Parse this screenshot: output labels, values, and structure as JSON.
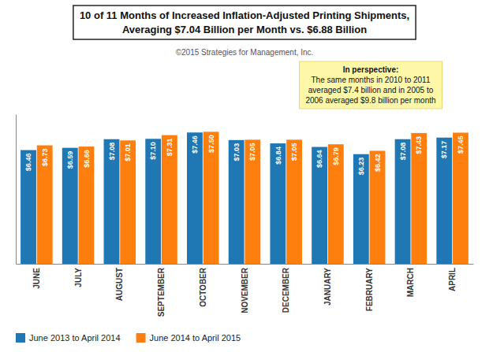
{
  "chart_data": {
    "type": "bar",
    "title": "10 of 11 Months of Increased Inflation-Adjusted Printing Shipments,\nAveraging $7.04 Billion per Month vs. $6.88 Billion",
    "subtitle": "©2015 Strategies for Management, Inc.",
    "categories": [
      "JUNE",
      "JULY",
      "AUGUST",
      "SEPTEMBER",
      "OCTOBER",
      "NOVEMBER",
      "DECEMBER",
      "JANUARY",
      "FEBRUARY",
      "MARCH",
      "APRIL"
    ],
    "series": [
      {
        "name": "June 2013 to April 2014",
        "values": [
          6.46,
          6.59,
          7.08,
          7.1,
          7.46,
          7.03,
          6.84,
          6.64,
          6.23,
          7.08,
          7.17
        ],
        "value_labels": [
          "$6.46",
          "$6.59",
          "$7.08",
          "$7.10",
          "$7.46",
          "$7.03",
          "$6.84",
          "$6.64",
          "$6.23",
          "$7.08",
          "$7.17"
        ]
      },
      {
        "name": "June 2014 to April 2015",
        "values": [
          6.73,
          6.66,
          7.01,
          7.31,
          7.5,
          7.05,
          7.05,
          6.79,
          6.42,
          7.43,
          7.45
        ],
        "value_labels": [
          "$6.73",
          "$6.66",
          "$7.01",
          "$7.31",
          "$7.50",
          "$7.05",
          "$7.05",
          "$6.79",
          "$6.42",
          "$7.43",
          "$7.45"
        ]
      }
    ],
    "ylim": [
      0,
      8.5
    ],
    "grid": false,
    "legend": "lower left",
    "data_labels": true,
    "tick_labels": "x",
    "annotations": [
      {
        "title": "In perspective:",
        "text": "The same months in 2010 to 2011\naveraged $7.4 billion and in 2005 to\n2006 averaged $9.8 billion per month"
      }
    ]
  }
}
